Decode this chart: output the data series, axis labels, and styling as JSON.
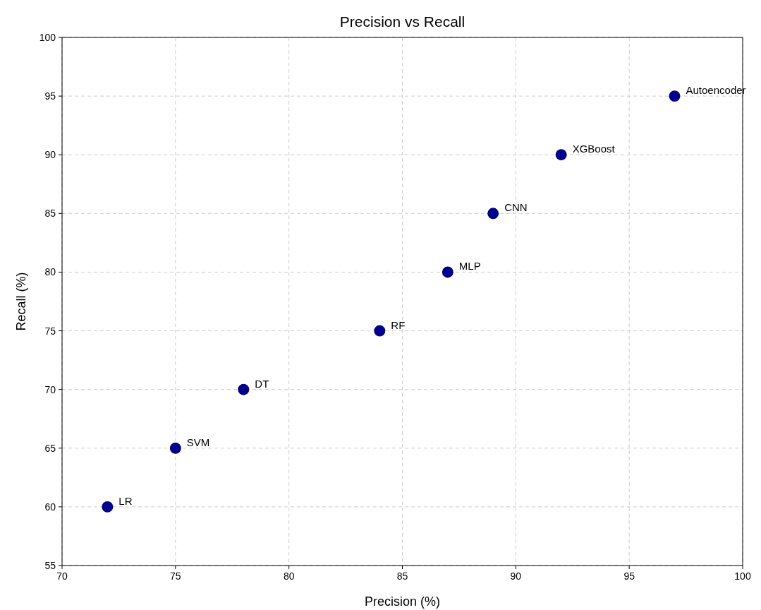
{
  "chart_data": {
    "type": "scatter",
    "title": "Precision vs Recall",
    "xlabel": "Precision (%)",
    "ylabel": "Recall (%)",
    "x": [
      72,
      75,
      78,
      84,
      87,
      89,
      92,
      97
    ],
    "series": [
      {
        "color": "#00008b",
        "values": [
          60,
          65,
          70,
          75,
          80,
          85,
          90,
          95
        ]
      }
    ],
    "xlim": [
      70,
      100
    ],
    "xticks": [
      70,
      75,
      80,
      85,
      90,
      95,
      100
    ],
    "ylim": [
      55,
      100
    ],
    "yticks": [
      55,
      60,
      65,
      70,
      75,
      80,
      85,
      90,
      95,
      100
    ],
    "grid": true,
    "marker": "circle",
    "annotations": [
      {
        "text": "LR",
        "x": 72,
        "y": 60
      },
      {
        "text": "SVM",
        "x": 75,
        "y": 65
      },
      {
        "text": "DT",
        "x": 78,
        "y": 70
      },
      {
        "text": "RF",
        "x": 84,
        "y": 75
      },
      {
        "text": "MLP",
        "x": 87,
        "y": 80
      },
      {
        "text": "CNN",
        "x": 89,
        "y": 85
      },
      {
        "text": "XGBoost",
        "x": 92,
        "y": 90
      },
      {
        "text": "Autoencoder",
        "x": 97,
        "y": 95
      }
    ]
  }
}
